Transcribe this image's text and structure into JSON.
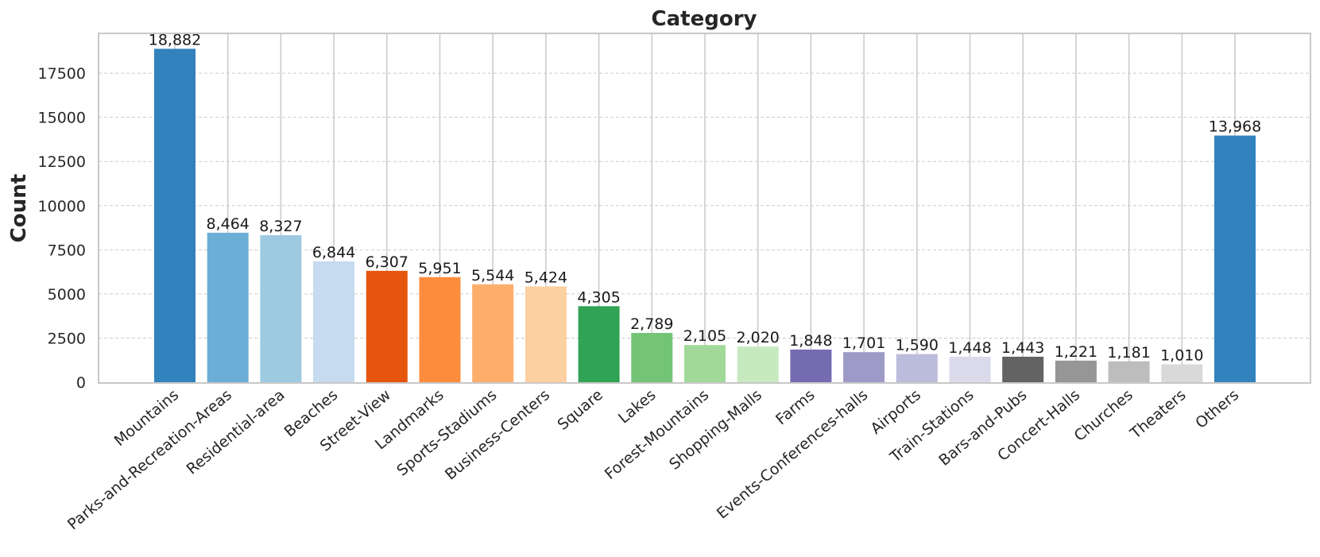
{
  "chart_data": {
    "type": "bar",
    "title": "Category",
    "xlabel": "",
    "ylabel": "Count",
    "ylim": [
      0,
      19800
    ],
    "yticks": [
      "0",
      "2500",
      "5000",
      "7500",
      "10000",
      "12500",
      "15000",
      "17500"
    ],
    "categories": [
      "Mountains",
      "Parks-and-Recreation-Areas",
      "Residential-area",
      "Beaches",
      "Street-View",
      "Landmarks",
      "Sports-Stadiums",
      "Business-Centers",
      "Square",
      "Lakes",
      "Forest-Mountains",
      "Shopping-Malls",
      "Farms",
      "Events-Conferences-halls",
      "Airports",
      "Train-Stations",
      "Bars-and-Pubs",
      "Concert-Halls",
      "Churches",
      "Theaters",
      "Others"
    ],
    "values": [
      18882,
      8464,
      8327,
      6844,
      6307,
      5951,
      5544,
      5424,
      4305,
      2789,
      2105,
      2020,
      1848,
      1701,
      1590,
      1448,
      1443,
      1221,
      1181,
      1010,
      13968
    ],
    "value_labels": [
      "18,882",
      "8,464",
      "8,327",
      "6,844",
      "6,307",
      "5,951",
      "5,544",
      "5,424",
      "4,305",
      "2,789",
      "2,105",
      "2,020",
      "1,848",
      "1,701",
      "1,590",
      "1,448",
      "1,443",
      "1,221",
      "1,181",
      "1,010",
      "13,968"
    ],
    "colors": [
      "#3182bd",
      "#6baed6",
      "#9ecae1",
      "#c6dbef",
      "#e6550d",
      "#fd8d3c",
      "#fdae6b",
      "#fdd0a2",
      "#31a354",
      "#74c476",
      "#a1d99b",
      "#c7e9c0",
      "#756bb1",
      "#9e9ac8",
      "#bcbddc",
      "#dadaeb",
      "#636363",
      "#969696",
      "#bdbdbd",
      "#d9d9d9",
      "#3182bd"
    ],
    "grid": true,
    "legend": "none"
  }
}
